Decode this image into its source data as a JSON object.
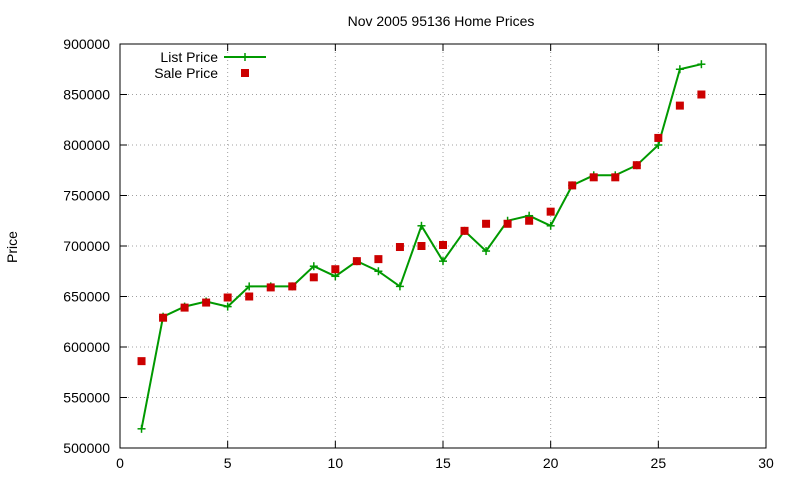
{
  "chart_data": {
    "type": "line",
    "title": "Nov 2005 95136 Home Prices",
    "xlabel": "",
    "ylabel": "Price",
    "xlim": [
      0,
      30
    ],
    "ylim": [
      500000,
      900000
    ],
    "x_ticks": [
      0,
      5,
      10,
      15,
      20,
      25,
      30
    ],
    "y_ticks": [
      500000,
      550000,
      600000,
      650000,
      700000,
      750000,
      800000,
      850000,
      900000
    ],
    "grid": true,
    "legend_position": "top-left",
    "series": [
      {
        "name": "List Price",
        "style": "line-plus",
        "color": "#009900",
        "points": [
          [
            1,
            519000
          ],
          [
            2,
            630000
          ],
          [
            3,
            640000
          ],
          [
            4,
            645000
          ],
          [
            5,
            640000
          ],
          [
            6,
            660000
          ],
          [
            7,
            660000
          ],
          [
            8,
            660000
          ],
          [
            9,
            680000
          ],
          [
            10,
            670000
          ],
          [
            11,
            685000
          ],
          [
            12,
            675000
          ],
          [
            13,
            660000
          ],
          [
            14,
            720000
          ],
          [
            15,
            685000
          ],
          [
            16,
            715000
          ],
          [
            17,
            695000
          ],
          [
            18,
            725000
          ],
          [
            19,
            730000
          ],
          [
            20,
            720000
          ],
          [
            21,
            760000
          ],
          [
            22,
            770000
          ],
          [
            23,
            770000
          ],
          [
            24,
            780000
          ],
          [
            25,
            800000
          ],
          [
            26,
            875000
          ],
          [
            27,
            880000
          ]
        ]
      },
      {
        "name": "Sale Price",
        "style": "square",
        "color": "#cc0000",
        "points": [
          [
            1,
            586000
          ],
          [
            2,
            629000
          ],
          [
            3,
            639000
          ],
          [
            4,
            644000
          ],
          [
            5,
            649000
          ],
          [
            6,
            650000
          ],
          [
            7,
            659000
          ],
          [
            8,
            660000
          ],
          [
            9,
            669000
          ],
          [
            10,
            677000
          ],
          [
            11,
            685000
          ],
          [
            12,
            687000
          ],
          [
            13,
            699000
          ],
          [
            14,
            700000
          ],
          [
            15,
            701000
          ],
          [
            16,
            715000
          ],
          [
            17,
            722000
          ],
          [
            18,
            722000
          ],
          [
            19,
            725000
          ],
          [
            20,
            734000
          ],
          [
            21,
            760000
          ],
          [
            22,
            768000
          ],
          [
            23,
            768000
          ],
          [
            24,
            780000
          ],
          [
            25,
            807000
          ],
          [
            26,
            839000
          ],
          [
            27,
            850000
          ]
        ]
      }
    ]
  }
}
